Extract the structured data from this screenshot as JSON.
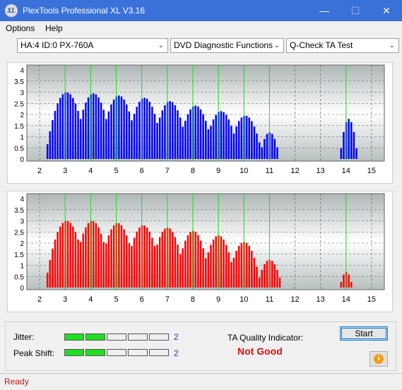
{
  "window": {
    "title": "PlexTools Professional XL V3.16",
    "icon_text": "XL"
  },
  "menu": [
    {
      "label": "Options"
    },
    {
      "label": "Help"
    }
  ],
  "toolbar": {
    "drive": "HA:4 ID:0  PX-760A",
    "function": "DVD Diagnostic Functions",
    "test": "Q-Check TA Test"
  },
  "chart_data": [
    {
      "type": "bar",
      "name": "land",
      "color": "#0000ff",
      "xlim": [
        1.5,
        15.5
      ],
      "ylim": [
        0,
        4
      ],
      "x_ticks": [
        2,
        3,
        4,
        5,
        6,
        7,
        8,
        9,
        10,
        11,
        12,
        13,
        14,
        15
      ],
      "y_ticks": [
        0,
        0.5,
        1,
        1.5,
        2,
        2.5,
        3,
        3.5,
        4
      ],
      "y_tick_labels": [
        "0",
        "0.5",
        "1",
        "1.5",
        "2",
        "2.5",
        "3",
        "3.5",
        "4"
      ],
      "markers": [
        3,
        4,
        5,
        6,
        7,
        8,
        9,
        10,
        11,
        14
      ],
      "peaks": [
        {
          "center": 3.05,
          "height": 3.0,
          "width": 0.85
        },
        {
          "center": 4.1,
          "height": 2.95,
          "width": 0.8
        },
        {
          "center": 5.1,
          "height": 2.85,
          "width": 0.8
        },
        {
          "center": 6.1,
          "height": 2.75,
          "width": 0.78
        },
        {
          "center": 7.1,
          "height": 2.6,
          "width": 0.75
        },
        {
          "center": 8.1,
          "height": 2.4,
          "width": 0.75
        },
        {
          "center": 9.1,
          "height": 2.15,
          "width": 0.72
        },
        {
          "center": 10.05,
          "height": 1.95,
          "width": 0.7
        },
        {
          "center": 11.0,
          "height": 1.2,
          "width": 0.4
        },
        {
          "center": 14.1,
          "height": 1.8,
          "width": 0.35
        }
      ]
    },
    {
      "type": "bar",
      "name": "pit",
      "color": "#ff0000",
      "xlim": [
        1.5,
        15.5
      ],
      "ylim": [
        0,
        4
      ],
      "x_ticks": [
        2,
        3,
        4,
        5,
        6,
        7,
        8,
        9,
        10,
        11,
        12,
        13,
        14,
        15
      ],
      "y_ticks": [
        0,
        0.5,
        1,
        1.5,
        2,
        2.5,
        3,
        3.5,
        4
      ],
      "y_tick_labels": [
        "0",
        "0.5",
        "1",
        "1.5",
        "2",
        "2.5",
        "3",
        "3.5",
        "4"
      ],
      "markers": [
        3,
        4,
        5,
        6,
        7,
        8,
        9,
        10,
        11,
        14
      ],
      "peaks": [
        {
          "center": 3.05,
          "height": 3.0,
          "width": 0.85
        },
        {
          "center": 4.05,
          "height": 3.0,
          "width": 0.8
        },
        {
          "center": 5.05,
          "height": 2.9,
          "width": 0.8
        },
        {
          "center": 6.05,
          "height": 2.8,
          "width": 0.78
        },
        {
          "center": 7.0,
          "height": 2.7,
          "width": 0.75
        },
        {
          "center": 8.0,
          "height": 2.55,
          "width": 0.72
        },
        {
          "center": 9.0,
          "height": 2.35,
          "width": 0.7
        },
        {
          "center": 10.0,
          "height": 2.05,
          "width": 0.68
        },
        {
          "center": 11.0,
          "height": 1.25,
          "width": 0.5
        },
        {
          "center": 14.0,
          "height": 0.7,
          "width": 0.25
        }
      ]
    }
  ],
  "results": {
    "jitter_label": "Jitter:",
    "jitter_value": "2",
    "jitter_level": 2,
    "peak_label": "Peak Shift:",
    "peak_value": "2",
    "peak_level": 2,
    "ta_label": "TA Quality Indicator:",
    "ta_value": "Not Good",
    "start_label": "Start",
    "info_icon": "i"
  },
  "status": {
    "text": "Ready"
  },
  "colors": {
    "titlebar": "#3a71d8",
    "marker": "#22dd22",
    "quality": "#dd1111",
    "status": "#cc1111"
  }
}
